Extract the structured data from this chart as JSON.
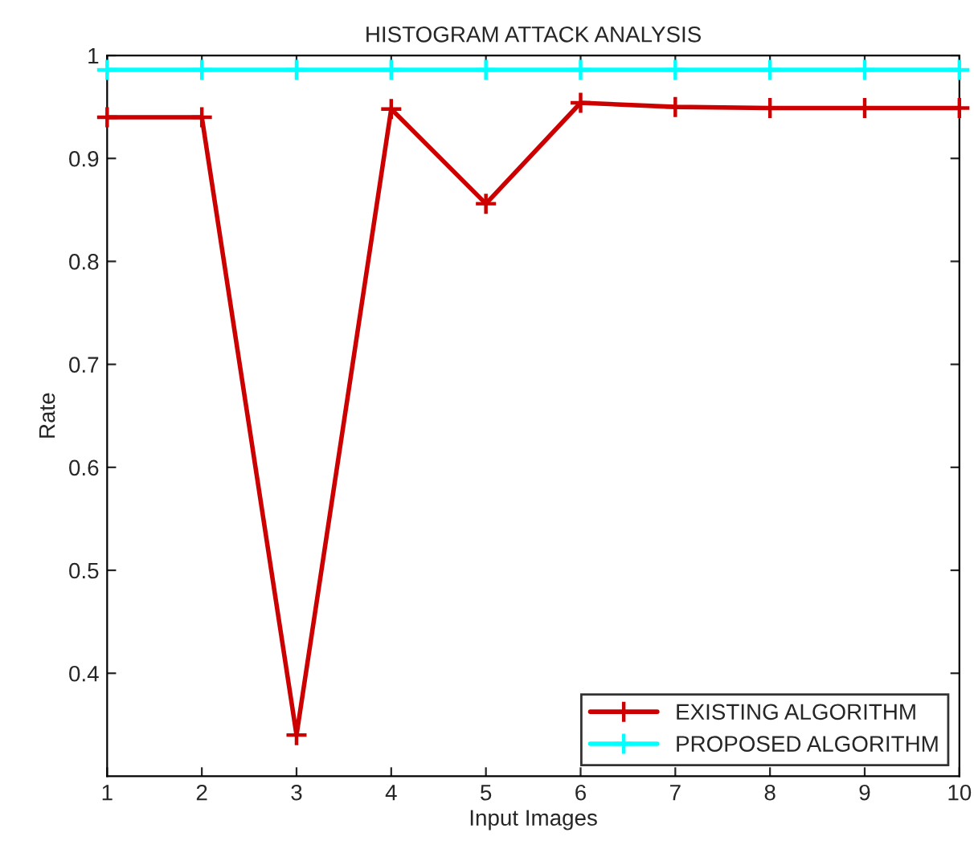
{
  "chart_data": {
    "type": "line",
    "title": "HISTOGRAM ATTACK ANALYSIS",
    "xlabel": "Input Images",
    "ylabel": "Rate",
    "x": [
      1,
      2,
      3,
      4,
      5,
      6,
      7,
      8,
      9,
      10
    ],
    "series": [
      {
        "name": "EXISTING ALGORITHM",
        "color": "#cc0000",
        "values": [
          0.94,
          0.94,
          0.34,
          0.948,
          0.856,
          0.954,
          0.95,
          0.949,
          0.949,
          0.949
        ]
      },
      {
        "name": "PROPOSED ALGORITHM",
        "color": "#00ffff",
        "values": [
          0.986,
          0.986,
          0.986,
          0.986,
          0.986,
          0.986,
          0.986,
          0.986,
          0.986,
          0.986
        ]
      }
    ],
    "xlim": [
      1,
      10
    ],
    "xticks": [
      1,
      2,
      3,
      4,
      5,
      6,
      7,
      8,
      9,
      10
    ],
    "ylim": [
      0.3,
      1
    ],
    "yticks": [
      0.4,
      0.5,
      0.6,
      0.7,
      0.8,
      0.9,
      1
    ],
    "marker": "cross",
    "line_style": "solid",
    "grid": false,
    "legend": "bottom right"
  }
}
